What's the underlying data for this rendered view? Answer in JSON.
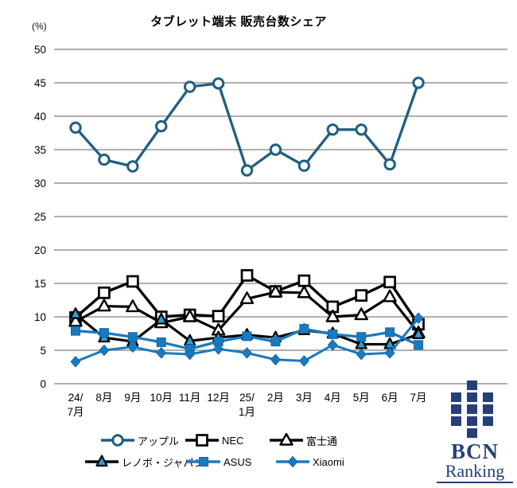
{
  "title": "タブレット端末 販売台数シェア",
  "y_axis": {
    "unit_label": "(%)",
    "ticks": [
      0,
      5,
      10,
      15,
      20,
      25,
      30,
      35,
      40,
      45,
      50
    ]
  },
  "chart_data": {
    "type": "line",
    "title": "タブレット端末 販売台数シェア",
    "xlabel": "",
    "ylabel": "(%)",
    "ylim": [
      0,
      50
    ],
    "grid": true,
    "legend_position": "bottom",
    "categories": [
      "24/7月",
      "8月",
      "9月",
      "10月",
      "11月",
      "12月",
      "25/1月",
      "2月",
      "3月",
      "4月",
      "5月",
      "6月",
      "7月"
    ],
    "categories_display": [
      [
        "24/",
        "7月"
      ],
      [
        "8月"
      ],
      [
        "9月"
      ],
      [
        "10月"
      ],
      [
        "11月"
      ],
      [
        "12月"
      ],
      [
        "25/",
        "1月"
      ],
      [
        "2月"
      ],
      [
        "3月"
      ],
      [
        "4月"
      ],
      [
        "5月"
      ],
      [
        "6月"
      ],
      [
        "7月"
      ]
    ],
    "series": [
      {
        "name": "アップル",
        "marker": "circle",
        "line_color": "#1e6080",
        "marker_fill": "#ffffff",
        "marker_stroke": "#1e6080",
        "values": [
          38.3,
          33.5,
          32.5,
          38.5,
          44.4,
          44.9,
          31.9,
          35.0,
          32.6,
          38.0,
          38.0,
          32.8,
          45.0
        ]
      },
      {
        "name": "NEC",
        "marker": "square",
        "line_color": "#000000",
        "marker_fill": "#ffffff",
        "marker_stroke": "#000000",
        "values": [
          9.9,
          13.6,
          15.3,
          10.0,
          10.3,
          10.1,
          16.2,
          13.8,
          15.4,
          11.5,
          13.2,
          15.2,
          8.9
        ]
      },
      {
        "name": "富士通",
        "marker": "triangle",
        "line_color": "#000000",
        "marker_fill": "#ffffff",
        "marker_stroke": "#000000",
        "values": [
          9.3,
          11.6,
          11.5,
          9.1,
          10.0,
          8.0,
          12.7,
          13.7,
          13.6,
          10.0,
          10.3,
          13.0,
          7.6
        ]
      },
      {
        "name": "レノボ・ジャパン",
        "marker": "triangle",
        "line_color": "#000000",
        "marker_fill": "#2e9fd8",
        "marker_stroke": "#000000",
        "values": [
          10.4,
          6.9,
          6.3,
          9.6,
          6.4,
          6.9,
          7.3,
          6.9,
          8.0,
          7.5,
          5.9,
          5.9,
          7.4
        ]
      },
      {
        "name": "ASUS",
        "marker": "square",
        "line_color": "#1a7abf",
        "marker_fill": "#1a7abf",
        "marker_stroke": "#16679f",
        "values": [
          7.9,
          7.6,
          7.0,
          6.2,
          5.2,
          6.3,
          7.1,
          6.3,
          8.2,
          7.4,
          7.0,
          7.7,
          5.8
        ]
      },
      {
        "name": "Xiaomi",
        "marker": "diamond",
        "line_color": "#1a7abf",
        "marker_fill": "#1a7abf",
        "marker_stroke": "#16679f",
        "values": [
          3.3,
          5.0,
          5.5,
          4.6,
          4.4,
          5.2,
          4.6,
          3.6,
          3.4,
          5.8,
          4.4,
          4.6,
          9.8
        ]
      }
    ]
  },
  "colors": {
    "gridline": "#7f7f7f",
    "apple_teal": "#1e6080",
    "bright_blue": "#1a7abf",
    "lenovo_marker_blue": "#2e9fd8",
    "logo_navy": "#253f77"
  },
  "logo": {
    "line1": "BCN",
    "line2": "Ranking",
    "pattern": [
      "010",
      "111",
      "111",
      "111",
      "010"
    ]
  }
}
